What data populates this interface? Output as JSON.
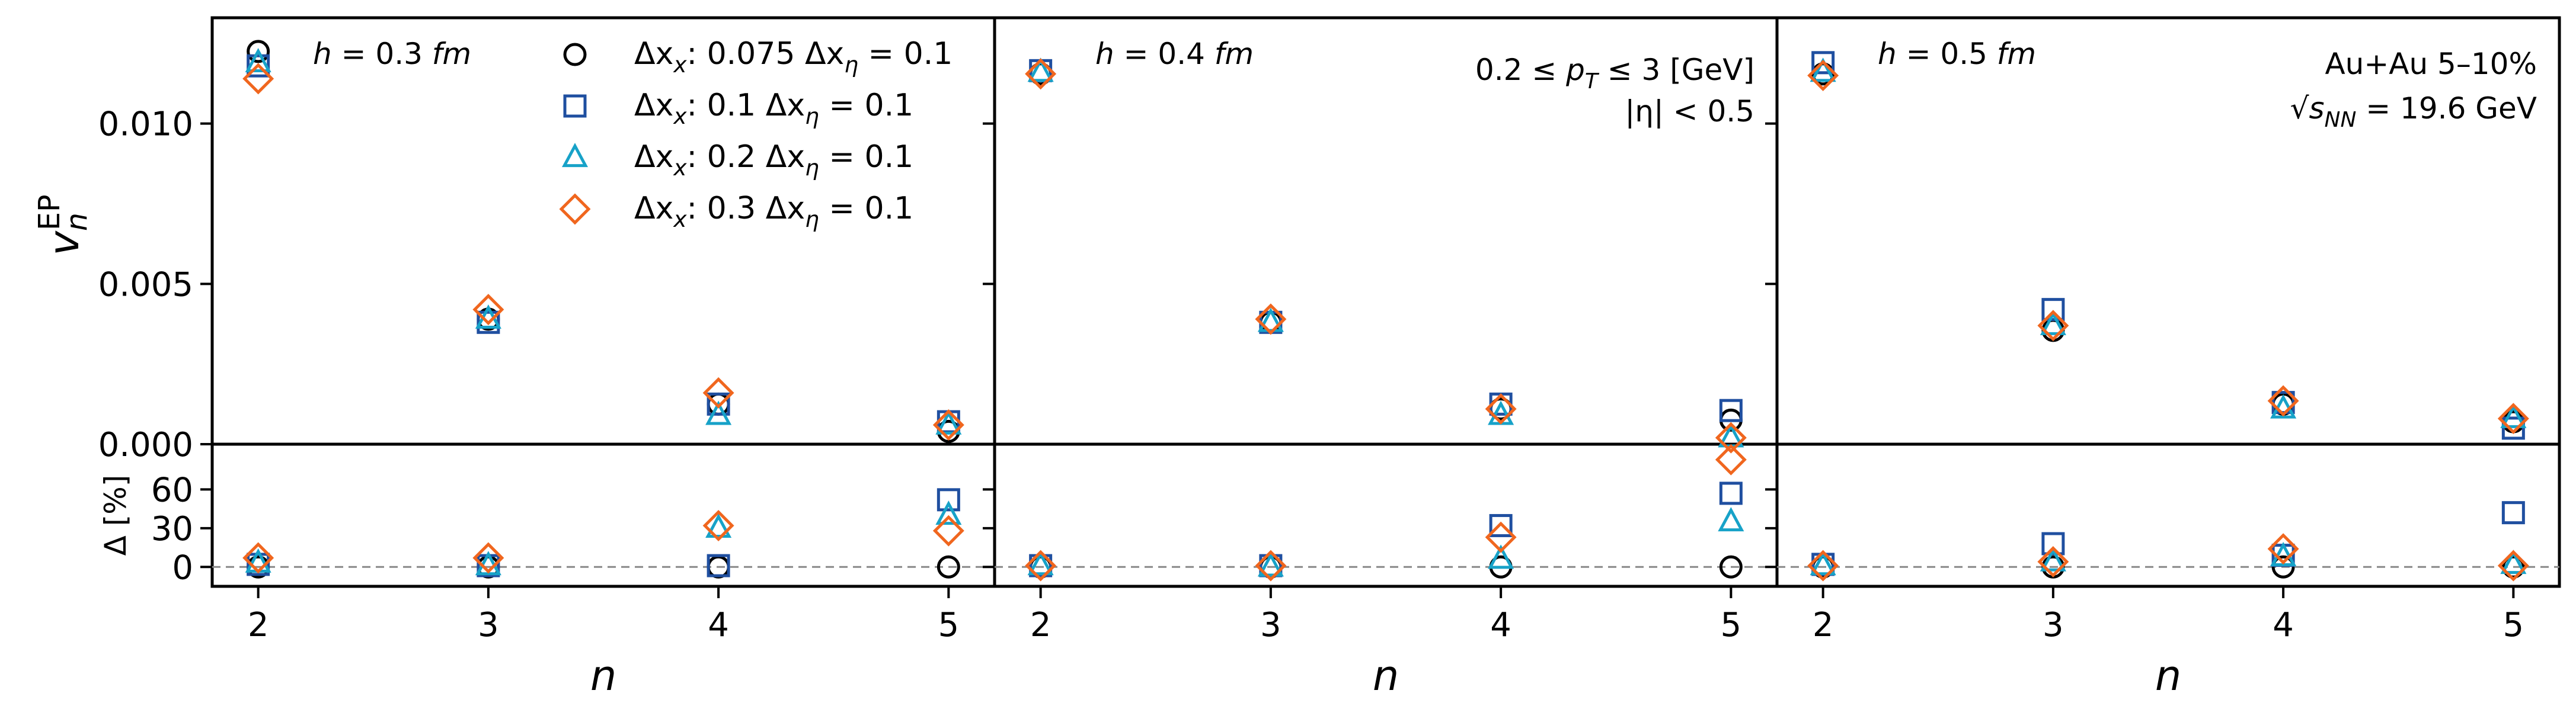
{
  "chart_data": {
    "type": "scatter",
    "layout": "3 columns, each with a main panel (v_n^EP) and a ratio panel (Δ [%])",
    "x_label": "n",
    "top_ylabel": "v",
    "top_ylabel_sub": "n",
    "top_ylabel_sup": "EP",
    "bottom_ylabel": "Δ [%]",
    "x_categories": [
      2,
      3,
      4,
      5
    ],
    "x_range": [
      1.8,
      5.2
    ],
    "top_ylim": [
      0,
      0.0133
    ],
    "bottom_ylim": [
      -15,
      95
    ],
    "top_yticks": [
      {
        "value": 0.0,
        "label": "0.000"
      },
      {
        "value": 0.005,
        "label": "0.005"
      },
      {
        "value": 0.01,
        "label": "0.010"
      }
    ],
    "bottom_yticks": [
      {
        "value": 0,
        "label": "0"
      },
      {
        "value": 30,
        "label": "30"
      },
      {
        "value": 60,
        "label": "60"
      }
    ],
    "reference_line": {
      "value": 0,
      "style": "dashed",
      "color": "#888888"
    },
    "grid": false,
    "legend": {
      "placement": "top-right of first panel",
      "entries": [
        {
          "label": "Δx",
          "sub": "x",
          "mid": ": 0.075 Δx",
          "sub2": "η",
          "tail": " = 0.1",
          "marker": "circle",
          "color": "#000000"
        },
        {
          "label": "Δx",
          "sub": "x",
          "mid": ": 0.1 Δx",
          "sub2": "η",
          "tail": " = 0.1",
          "marker": "square",
          "color": "#1f4fa0"
        },
        {
          "label": "Δx",
          "sub": "x",
          "mid": ": 0.2 Δx",
          "sub2": "η",
          "tail": " = 0.1",
          "marker": "triangle",
          "color": "#17a2c8"
        },
        {
          "label": "Δx",
          "sub": "x",
          "mid": ": 0.3 Δx",
          "sub2": "η",
          "tail": " = 0.1",
          "marker": "diamond",
          "color": "#f0661e"
        }
      ]
    },
    "annotations": {
      "pt_range": "0.2 ≤ p",
      "pt_sub": "T",
      "pt_tail": " ≤ 3 [GeV]",
      "eta_range": "|η| < 0.5",
      "system": "Au+Au 5–10%",
      "energy_pre": "√",
      "energy_var": "s",
      "energy_sub": "NN",
      "energy_tail": " = 19.6 GeV"
    },
    "panels": [
      {
        "label_pre": "h = 0.3 ",
        "label_unit": "fm",
        "series": [
          {
            "marker": "circle",
            "vn": [
              0.01225,
              0.0039,
              0.00125,
              0.0004
            ],
            "delta": [
              0,
              0,
              0,
              0
            ]
          },
          {
            "marker": "square",
            "vn": [
              0.0118,
              0.0038,
              0.00125,
              0.0007
            ],
            "delta": [
              2,
              1,
              1,
              52
            ]
          },
          {
            "marker": "triangle",
            "vn": [
              0.0119,
              0.0039,
              0.0009,
              0.0006
            ],
            "delta": [
              3,
              1,
              30,
              40
            ]
          },
          {
            "marker": "diamond",
            "vn": [
              0.0114,
              0.0042,
              0.0016,
              0.0006
            ],
            "delta": [
              7,
              7,
              32,
              28
            ]
          }
        ]
      },
      {
        "label_pre": "h = 0.4 ",
        "label_unit": "fm",
        "series": [
          {
            "marker": "circle",
            "vn": [
              0.01155,
              0.0038,
              0.0011,
              0.00075
            ],
            "delta": [
              0,
              0,
              0,
              0
            ]
          },
          {
            "marker": "square",
            "vn": [
              0.01165,
              0.0038,
              0.00125,
              0.00105
            ],
            "delta": [
              1,
              1,
              32,
              57
            ]
          },
          {
            "marker": "triangle",
            "vn": [
              0.0116,
              0.0038,
              0.0009,
              0.0002
            ],
            "delta": [
              1,
              0,
              6,
              35
            ]
          },
          {
            "marker": "diamond",
            "vn": [
              0.01155,
              0.0039,
              0.0011,
              0.0002
            ],
            "delta": [
              1,
              1,
              23,
              83
            ]
          }
        ]
      },
      {
        "label_pre": "h = 0.5 ",
        "label_unit": "fm",
        "series": [
          {
            "marker": "circle",
            "vn": [
              0.01155,
              0.00355,
              0.00125,
              0.0007
            ],
            "delta": [
              0,
              0,
              0,
              0
            ]
          },
          {
            "marker": "square",
            "vn": [
              0.0119,
              0.0042,
              0.0013,
              0.0005
            ],
            "delta": [
              2,
              18,
              9,
              42
            ]
          },
          {
            "marker": "triangle",
            "vn": [
              0.0116,
              0.0037,
              0.0011,
              0.0008
            ],
            "delta": [
              1,
              4,
              8,
              2
            ]
          },
          {
            "marker": "diamond",
            "vn": [
              0.0115,
              0.0037,
              0.00135,
              0.0008
            ],
            "delta": [
              1,
              4,
              14,
              1
            ]
          }
        ]
      }
    ]
  }
}
